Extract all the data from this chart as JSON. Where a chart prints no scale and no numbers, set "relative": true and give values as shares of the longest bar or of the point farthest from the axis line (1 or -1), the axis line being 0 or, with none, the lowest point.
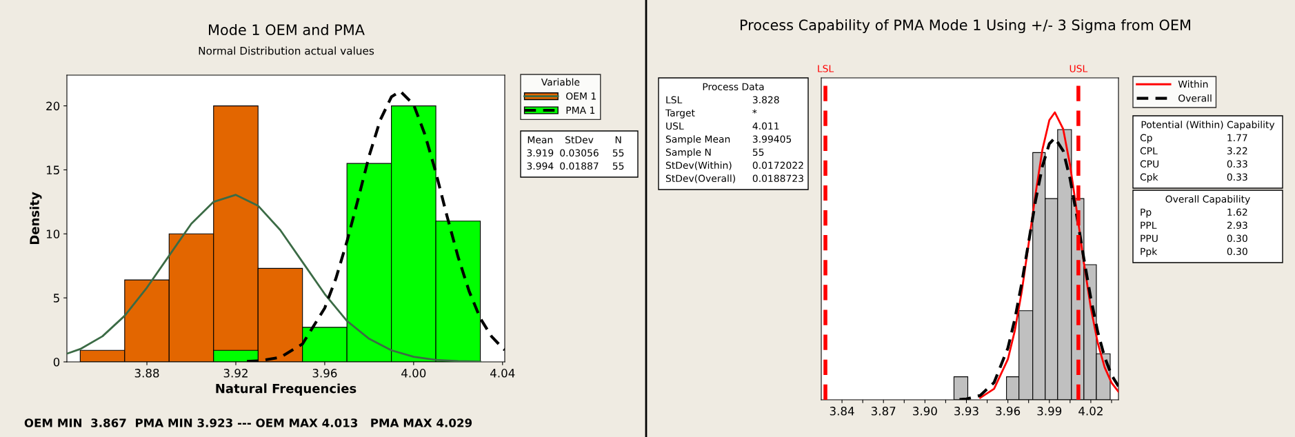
{
  "chart_data": [
    {
      "type": "histogram",
      "title": "Mode 1 OEM and PMA",
      "subtitle": "Normal Distribution actual values",
      "xlabel": "Natural Frequencies",
      "ylabel": "Density",
      "legend_title": "Variable",
      "bins": [
        3.85,
        3.87,
        3.89,
        3.91,
        3.93,
        3.95,
        3.97,
        3.99,
        4.01,
        4.03
      ],
      "series": [
        {
          "name": "OEM 1",
          "color": "#e36600",
          "values": [
            0.9,
            6.4,
            10,
            20,
            7.3,
            null,
            null,
            null,
            null
          ]
        },
        {
          "name": "PMA 1",
          "color": "#00ff00",
          "values": [
            null,
            null,
            null,
            0.9,
            null,
            2.7,
            15.5,
            20,
            11
          ]
        },
        {
          "type": "line",
          "color": "#3b6b45",
          "line_style": "solid",
          "x": [
            3.844,
            3.85,
            3.86,
            3.87,
            3.88,
            3.89,
            3.9,
            3.91,
            3.92,
            3.93,
            3.94,
            3.95,
            3.96,
            3.97,
            3.98,
            3.99,
            4.0,
            4.01,
            4.02,
            4.03
          ],
          "values": [
            0.64,
            1.0,
            2.0,
            3.6,
            5.8,
            8.3,
            10.8,
            12.5,
            13.05,
            12.2,
            10.3,
            7.8,
            5.3,
            3.2,
            1.8,
            0.9,
            0.4,
            0.16,
            0.06,
            0.02
          ]
        },
        {
          "type": "line",
          "color": "#000000",
          "line_style": "dashed",
          "x": [
            3.925,
            3.93,
            3.94,
            3.95,
            3.96,
            3.965,
            3.97,
            3.975,
            3.98,
            3.985,
            3.99,
            3.994,
            4.0,
            4.005,
            4.01,
            4.015,
            4.02,
            4.025,
            4.03,
            4.035,
            4.04,
            4.041
          ],
          "values": [
            0.03,
            0.07,
            0.35,
            1.4,
            4.2,
            6.5,
            9.4,
            12.7,
            16.1,
            18.9,
            20.7,
            21.14,
            20.1,
            17.8,
            14.8,
            11.4,
            8.2,
            5.5,
            3.4,
            2.0,
            1.08,
            0.93
          ]
        }
      ],
      "xlim": [
        3.844,
        4.041
      ],
      "ylim": [
        0,
        22.4
      ],
      "xticks": [
        3.88,
        3.92,
        3.96,
        {
          "value": 4.0,
          "label": "4.00"
        },
        4.04
      ],
      "yticks": [
        0,
        5,
        10,
        15,
        20
      ],
      "grid": false,
      "legend": "right",
      "annotations": [
        "Mean\tStDev\tN\n3.919\t0.03056\t55\n3.994\t0.01887\t55",
        "OEM MIN  3.867  PMA MIN 3.923 --- OEM MAX 4.013   PMA MAX 4.029"
      ]
    },
    {
      "type": "histogram",
      "title": "Process Capability of PMA Mode 1 Using +/- 3 Sigma from OEM",
      "relative": true,
      "bins": [
        3.921,
        3.931,
        3.959,
        3.968,
        3.978,
        3.987,
        3.996,
        4.006,
        4.015,
        4.024,
        4.034
      ],
      "series": [
        {
          "color": "#c0c0c0",
          "values": [
            0.08,
            null,
            0.08,
            0.31,
            0.86,
            0.7,
            0.94,
            0.7,
            0.47,
            0.16
          ]
        },
        {
          "type": "line",
          "name": "Within",
          "color": "#ff0000",
          "line_style": "solid",
          "x": [
            3.94,
            3.95,
            3.96,
            3.965,
            3.97,
            3.975,
            3.98,
            3.985,
            3.99,
            3.994,
            4.0,
            4.005,
            4.01,
            4.015,
            4.02,
            4.025,
            4.03,
            4.035,
            4.04
          ],
          "values": [
            0.007,
            0.038,
            0.141,
            0.24,
            0.376,
            0.542,
            0.716,
            0.871,
            0.973,
            1.0,
            0.942,
            0.816,
            0.651,
            0.476,
            0.32,
            0.198,
            0.113,
            0.059,
            0.028
          ]
        },
        {
          "type": "line",
          "name": "Overall",
          "color": "#000000",
          "line_style": "dashed",
          "x": [
            3.925,
            3.93,
            3.94,
            3.95,
            3.96,
            3.965,
            3.97,
            3.975,
            3.98,
            3.985,
            3.99,
            3.994,
            4.0,
            4.005,
            4.01,
            4.015,
            4.02,
            4.025,
            4.03,
            4.035,
            4.04
          ],
          "values": [
            0.001,
            0.003,
            0.015,
            0.06,
            0.18,
            0.28,
            0.405,
            0.548,
            0.692,
            0.813,
            0.891,
            0.911,
            0.866,
            0.769,
            0.636,
            0.49,
            0.353,
            0.236,
            0.148,
            0.086,
            0.047
          ]
        }
      ],
      "xlim": [
        3.825,
        4.04
      ],
      "xticks": [
        3.84,
        {
          "value": 3.855,
          "label": null
        },
        3.87,
        {
          "value": 3.885,
          "label": null
        },
        {
          "value": 3.9,
          "label": "3.90"
        },
        {
          "value": 3.915,
          "label": null
        },
        3.93,
        {
          "value": 3.945,
          "label": null
        },
        3.96,
        {
          "value": 3.975,
          "label": null
        },
        3.99,
        {
          "value": 4.005,
          "label": null
        },
        4.02,
        {
          "value": 4.035,
          "label": null
        }
      ],
      "tick_labels": "x",
      "grid": false,
      "legend": "right",
      "ref_lines": [
        {
          "axis": "x",
          "value": 3.828,
          "label": "LSL",
          "color": "#ff0000",
          "line_style": "dashed"
        },
        {
          "axis": "x",
          "value": 4.011,
          "label": "USL",
          "color": "#ff0000",
          "line_style": "dashed"
        }
      ],
      "annotations": [
        "Process Data\nLSL\t3.828\nTarget\t*\nUSL\t4.011\nSample Mean\t3.99405\nSample N\t55\nStDev(Within)\t0.0172022\nStDev(Overall)\t0.0188723",
        "Potential (Within) Capability\nCp\t1.77\nCPL\t3.22\nCPU\t0.33\nCpk\t0.33",
        "Overall Capability\nPp\t1.62\nPPL\t2.93\nPPU\t0.30\nPpk\t0.30"
      ]
    }
  ]
}
